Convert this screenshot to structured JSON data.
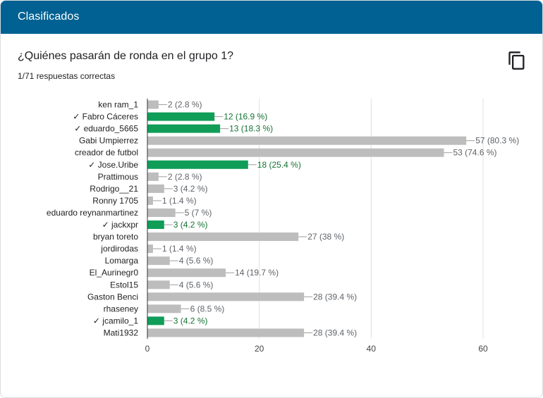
{
  "header": {
    "title": "Clasificados"
  },
  "question": {
    "title": "¿Quiénes pasarán de ronda en el grupo 1?",
    "subtitle": "1/71 respuestas correctas"
  },
  "colors": {
    "header_bg": "#006192",
    "correct_bar": "#0f9d58",
    "other_bar": "#bdbdbd",
    "correct_text": "#137333",
    "other_text": "#5f6368"
  },
  "icons": {
    "copy": "copy-icon"
  },
  "chart_data": {
    "type": "bar",
    "orientation": "horizontal",
    "categories": [
      "ken ram_1",
      "Fabro Cáceres",
      "eduardo_5665",
      "Gabi Umpierrez",
      "creador de futbol",
      "Jose.Uribe",
      "Prattimous",
      "Rodrigo__21",
      "Ronny 1705",
      "eduardo reynanmartinez",
      "jackxpr",
      "bryan toreto",
      "jordirodas",
      "Lomarga",
      "El_Aurinegr0",
      "Estol15",
      "Gaston Benci",
      "rhaseney",
      "jcamilo_1",
      "Mati1932"
    ],
    "values": [
      2,
      12,
      13,
      57,
      53,
      18,
      2,
      3,
      1,
      5,
      3,
      27,
      1,
      4,
      14,
      4,
      28,
      6,
      3,
      28
    ],
    "data_labels": [
      "2 (2.8 %)",
      "12 (16.9 %)",
      "13 (18.3 %)",
      "57 (80.3 %)",
      "53 (74.6 %)",
      "18 (25.4 %)",
      "2 (2.8 %)",
      "3 (4.2 %)",
      "1 (1.4 %)",
      "5 (7 %)",
      "3 (4.2 %)",
      "27 (38 %)",
      "1 (1.4 %)",
      "4 (5.6 %)",
      "14 (19.7 %)",
      "4 (5.6 %)",
      "28 (39.4 %)",
      "6 (8.5 %)",
      "3 (4.2 %)",
      "28 (39.4 %)"
    ],
    "correct": [
      false,
      true,
      true,
      false,
      false,
      true,
      false,
      false,
      false,
      false,
      true,
      false,
      false,
      false,
      false,
      false,
      false,
      false,
      true,
      false
    ],
    "check_mark": "✓",
    "xlim": [
      0,
      60
    ],
    "x_ticks": [
      "0",
      "20",
      "40",
      "60"
    ],
    "grid": true
  }
}
